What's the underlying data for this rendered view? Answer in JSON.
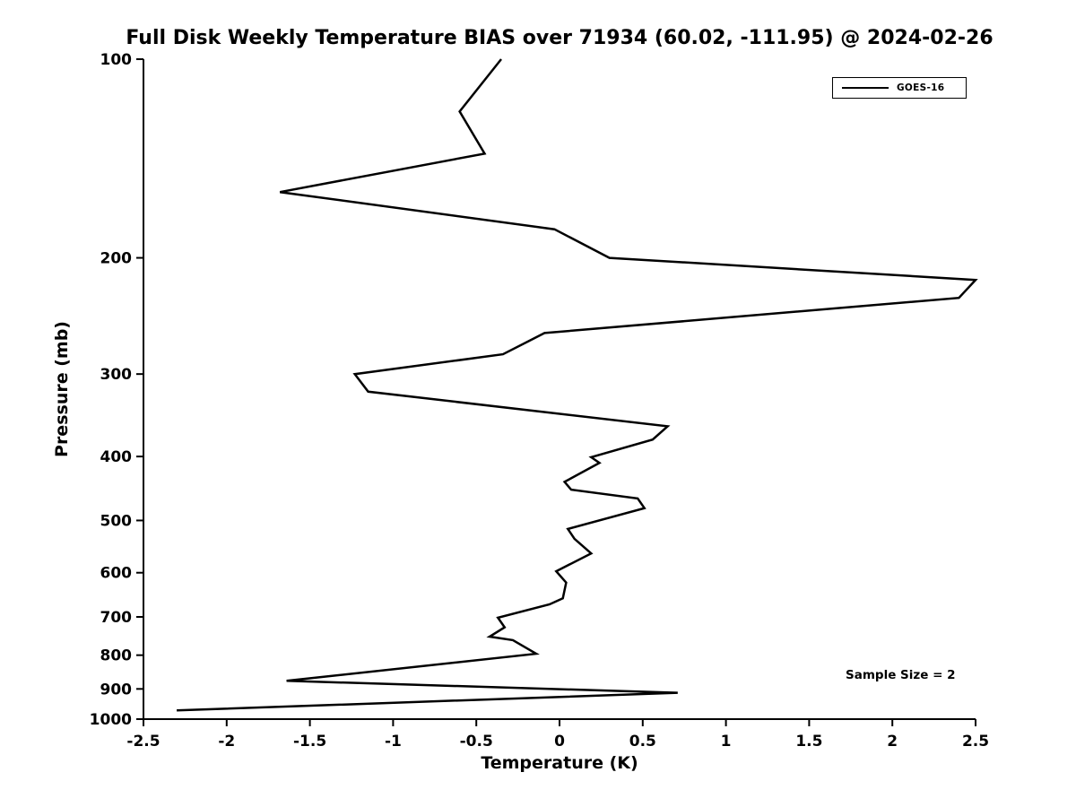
{
  "chart_data": {
    "type": "line",
    "title": "Full Disk Weekly Temperature BIAS over 71934 (60.02, -111.95) @ 2024-02-26",
    "xlabel": "Temperature (K)",
    "ylabel": "Pressure (mb)",
    "xlim": [
      -2.5,
      2.5
    ],
    "ylim": [
      100,
      1000
    ],
    "yscale": "log",
    "y_inverted": true,
    "grid": false,
    "xticks": [
      -2.5,
      -2,
      -1.5,
      -1,
      -0.5,
      0,
      0.5,
      1,
      1.5,
      2,
      2.5
    ],
    "xtick_labels": [
      "-2.5",
      "-2",
      "-1.5",
      "-1",
      "-0.5",
      "0",
      "0.5",
      "1",
      "1.5",
      "2",
      "2.5"
    ],
    "yticks": [
      100,
      200,
      300,
      400,
      500,
      600,
      700,
      800,
      900,
      1000
    ],
    "ytick_labels": [
      "100",
      "200",
      "300",
      "400",
      "500",
      "600",
      "700",
      "800",
      "900",
      "1000"
    ],
    "legend": {
      "position": "top-right",
      "entries": [
        {
          "label": "GOES-16",
          "color": "#000000"
        }
      ]
    },
    "annotation": "Sample Size = 2",
    "series": [
      {
        "name": "GOES-16",
        "color": "#000000",
        "pressure": [
          100,
          120,
          139,
          159,
          181,
          200,
          216,
          230,
          260,
          280,
          300,
          319,
          360,
          377,
          401,
          409,
          437,
          449,
          463,
          479,
          515,
          533,
          561,
          597,
          621,
          656,
          670,
          702,
          726,
          750,
          759,
          796,
          875,
          912,
          970
        ],
        "temperature": [
          -0.35,
          -0.6,
          -0.45,
          -1.68,
          -0.03,
          0.3,
          2.5,
          2.4,
          -0.09,
          -0.34,
          -1.23,
          -1.15,
          0.65,
          0.56,
          0.19,
          0.24,
          0.03,
          0.07,
          0.47,
          0.51,
          0.05,
          0.09,
          0.19,
          -0.02,
          0.04,
          0.02,
          -0.06,
          -0.37,
          -0.33,
          -0.42,
          -0.28,
          -0.14,
          -1.64,
          0.71,
          -2.3
        ]
      }
    ]
  }
}
